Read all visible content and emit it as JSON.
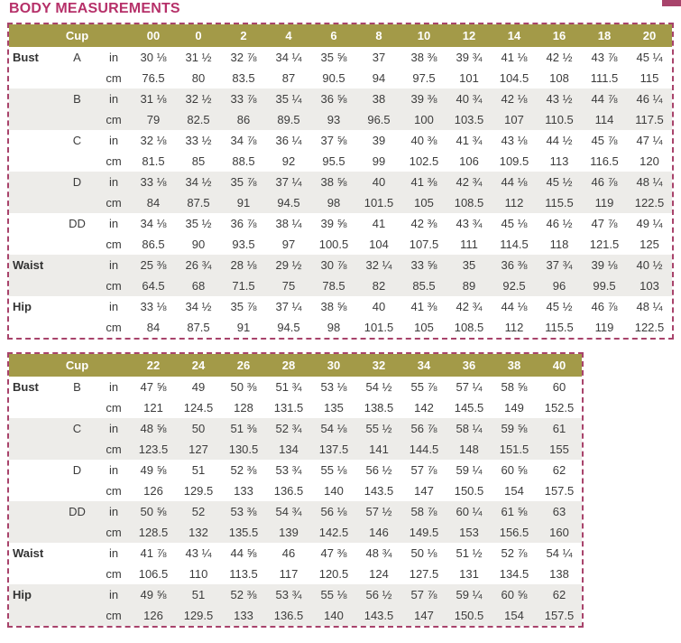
{
  "title": "BODY MEASUREMENTS",
  "colors": {
    "title_text": "#b63069",
    "header_bg": "#a39a48",
    "header_text": "#ffffff",
    "dashed_border": "#a8436b",
    "row_stripe": "#edece9",
    "body_text": "#3c3c3c"
  },
  "units": {
    "inches_label": "in",
    "centimeters_label": "cm"
  },
  "tables": [
    {
      "name": "sizes-00-20",
      "cup_header": "Cup",
      "sizes": [
        "00",
        "0",
        "2",
        "4",
        "6",
        "8",
        "10",
        "12",
        "14",
        "16",
        "18",
        "20"
      ],
      "groups": [
        {
          "label": "Bust",
          "cup": "A",
          "in": [
            "30 ⅛",
            "31 ½",
            "32 ⅞",
            "34 ¼",
            "35 ⅝",
            "37",
            "38 ⅜",
            "39 ¾",
            "41 ⅛",
            "42 ½",
            "43 ⅞",
            "45 ¼"
          ],
          "cm": [
            "76.5",
            "80",
            "83.5",
            "87",
            "90.5",
            "94",
            "97.5",
            "101",
            "104.5",
            "108",
            "111.5",
            "115"
          ]
        },
        {
          "label": "",
          "cup": "B",
          "in": [
            "31 ⅛",
            "32 ½",
            "33 ⅞",
            "35 ¼",
            "36 ⅝",
            "38",
            "39 ⅜",
            "40 ¾",
            "42 ⅛",
            "43 ½",
            "44 ⅞",
            "46 ¼"
          ],
          "cm": [
            "79",
            "82.5",
            "86",
            "89.5",
            "93",
            "96.5",
            "100",
            "103.5",
            "107",
            "110.5",
            "114",
            "117.5"
          ]
        },
        {
          "label": "",
          "cup": "C",
          "in": [
            "32 ⅛",
            "33 ½",
            "34 ⅞",
            "36 ¼",
            "37 ⅝",
            "39",
            "40 ⅜",
            "41 ¾",
            "43 ⅛",
            "44 ½",
            "45 ⅞",
            "47 ¼"
          ],
          "cm": [
            "81.5",
            "85",
            "88.5",
            "92",
            "95.5",
            "99",
            "102.5",
            "106",
            "109.5",
            "113",
            "116.5",
            "120"
          ]
        },
        {
          "label": "",
          "cup": "D",
          "in": [
            "33 ⅛",
            "34 ½",
            "35 ⅞",
            "37 ¼",
            "38 ⅝",
            "40",
            "41 ⅜",
            "42 ¾",
            "44 ⅛",
            "45 ½",
            "46 ⅞",
            "48 ¼"
          ],
          "cm": [
            "84",
            "87.5",
            "91",
            "94.5",
            "98",
            "101.5",
            "105",
            "108.5",
            "112",
            "115.5",
            "119",
            "122.5"
          ]
        },
        {
          "label": "",
          "cup": "DD",
          "in": [
            "34 ⅛",
            "35 ½",
            "36 ⅞",
            "38 ¼",
            "39 ⅝",
            "41",
            "42 ⅜",
            "43 ¾",
            "45 ⅛",
            "46 ½",
            "47 ⅞",
            "49 ¼"
          ],
          "cm": [
            "86.5",
            "90",
            "93.5",
            "97",
            "100.5",
            "104",
            "107.5",
            "111",
            "114.5",
            "118",
            "121.5",
            "125"
          ]
        },
        {
          "label": "Waist",
          "cup": "",
          "in": [
            "25 ⅜",
            "26 ¾",
            "28 ⅛",
            "29 ½",
            "30 ⅞",
            "32 ¼",
            "33 ⅝",
            "35",
            "36 ⅜",
            "37 ¾",
            "39 ⅛",
            "40 ½"
          ],
          "cm": [
            "64.5",
            "68",
            "71.5",
            "75",
            "78.5",
            "82",
            "85.5",
            "89",
            "92.5",
            "96",
            "99.5",
            "103"
          ]
        },
        {
          "label": "Hip",
          "cup": "",
          "in": [
            "33 ⅛",
            "34 ½",
            "35 ⅞",
            "37 ¼",
            "38 ⅝",
            "40",
            "41 ⅜",
            "42 ¾",
            "44 ⅛",
            "45 ½",
            "46 ⅞",
            "48 ¼"
          ],
          "cm": [
            "84",
            "87.5",
            "91",
            "94.5",
            "98",
            "101.5",
            "105",
            "108.5",
            "112",
            "115.5",
            "119",
            "122.5"
          ]
        }
      ]
    },
    {
      "name": "sizes-22-40",
      "cup_header": "Cup",
      "sizes": [
        "22",
        "24",
        "26",
        "28",
        "30",
        "32",
        "34",
        "36",
        "38",
        "40"
      ],
      "groups": [
        {
          "label": "Bust",
          "cup": "B",
          "in": [
            "47 ⅝",
            "49",
            "50 ⅜",
            "51 ¾",
            "53 ⅛",
            "54 ½",
            "55 ⅞",
            "57 ¼",
            "58 ⅝",
            "60"
          ],
          "cm": [
            "121",
            "124.5",
            "128",
            "131.5",
            "135",
            "138.5",
            "142",
            "145.5",
            "149",
            "152.5"
          ]
        },
        {
          "label": "",
          "cup": "C",
          "in": [
            "48 ⅝",
            "50",
            "51 ⅜",
            "52 ¾",
            "54 ⅛",
            "55 ½",
            "56 ⅞",
            "58 ¼",
            "59 ⅝",
            "61"
          ],
          "cm": [
            "123.5",
            "127",
            "130.5",
            "134",
            "137.5",
            "141",
            "144.5",
            "148",
            "151.5",
            "155"
          ]
        },
        {
          "label": "",
          "cup": "D",
          "in": [
            "49 ⅝",
            "51",
            "52 ⅜",
            "53 ¾",
            "55 ⅛",
            "56 ½",
            "57 ⅞",
            "59 ¼",
            "60 ⅝",
            "62"
          ],
          "cm": [
            "126",
            "129.5",
            "133",
            "136.5",
            "140",
            "143.5",
            "147",
            "150.5",
            "154",
            "157.5"
          ]
        },
        {
          "label": "",
          "cup": "DD",
          "in": [
            "50 ⅝",
            "52",
            "53 ⅜",
            "54 ¾",
            "56 ⅛",
            "57 ½",
            "58 ⅞",
            "60 ¼",
            "61 ⅝",
            "63"
          ],
          "cm": [
            "128.5",
            "132",
            "135.5",
            "139",
            "142.5",
            "146",
            "149.5",
            "153",
            "156.5",
            "160"
          ]
        },
        {
          "label": "Waist",
          "cup": "",
          "in": [
            "41 ⅞",
            "43 ¼",
            "44 ⅝",
            "46",
            "47 ⅜",
            "48 ¾",
            "50 ⅛",
            "51 ½",
            "52 ⅞",
            "54 ¼"
          ],
          "cm": [
            "106.5",
            "110",
            "113.5",
            "117",
            "120.5",
            "124",
            "127.5",
            "131",
            "134.5",
            "138"
          ]
        },
        {
          "label": "Hip",
          "cup": "",
          "in": [
            "49 ⅝",
            "51",
            "52 ⅜",
            "53 ¾",
            "55 ⅛",
            "56 ½",
            "57 ⅞",
            "59 ¼",
            "60 ⅝",
            "62"
          ],
          "cm": [
            "126",
            "129.5",
            "133",
            "136.5",
            "140",
            "143.5",
            "147",
            "150.5",
            "154",
            "157.5"
          ]
        }
      ]
    }
  ]
}
